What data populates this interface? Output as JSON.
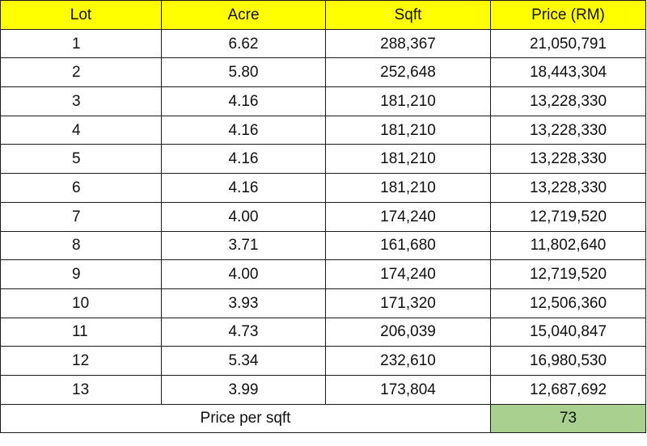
{
  "columns": {
    "lot": "Lot",
    "acre": "Acre",
    "sqft": "Sqft",
    "price": "Price (RM)"
  },
  "rows": [
    {
      "lot": "1",
      "acre": "6.62",
      "sqft": "288,367",
      "price": "21,050,791"
    },
    {
      "lot": "2",
      "acre": "5.80",
      "sqft": "252,648",
      "price": "18,443,304"
    },
    {
      "lot": "3",
      "acre": "4.16",
      "sqft": "181,210",
      "price": "13,228,330"
    },
    {
      "lot": "4",
      "acre": "4.16",
      "sqft": "181,210",
      "price": "13,228,330"
    },
    {
      "lot": "5",
      "acre": "4.16",
      "sqft": "181,210",
      "price": "13,228,330"
    },
    {
      "lot": "6",
      "acre": "4.16",
      "sqft": "181,210",
      "price": "13,228,330"
    },
    {
      "lot": "7",
      "acre": "4.00",
      "sqft": "174,240",
      "price": "12,719,520"
    },
    {
      "lot": "8",
      "acre": "3.71",
      "sqft": "161,680",
      "price": "11,802,640"
    },
    {
      "lot": "9",
      "acre": "4.00",
      "sqft": "174,240",
      "price": "12,719,520"
    },
    {
      "lot": "10",
      "acre": "3.93",
      "sqft": "171,320",
      "price": "12,506,360"
    },
    {
      "lot": "11",
      "acre": "4.73",
      "sqft": "206,039",
      "price": "15,040,847"
    },
    {
      "lot": "12",
      "acre": "5.34",
      "sqft": "232,610",
      "price": "16,980,530"
    },
    {
      "lot": "13",
      "acre": "3.99",
      "sqft": "173,804",
      "price": "12,687,692"
    }
  ],
  "summary": {
    "label": "Price per sqft",
    "value": "73"
  },
  "colors": {
    "header_fill": "#ffff00",
    "summary_value_fill": "#a9d08e",
    "grid_line": "#1a1a1a"
  }
}
